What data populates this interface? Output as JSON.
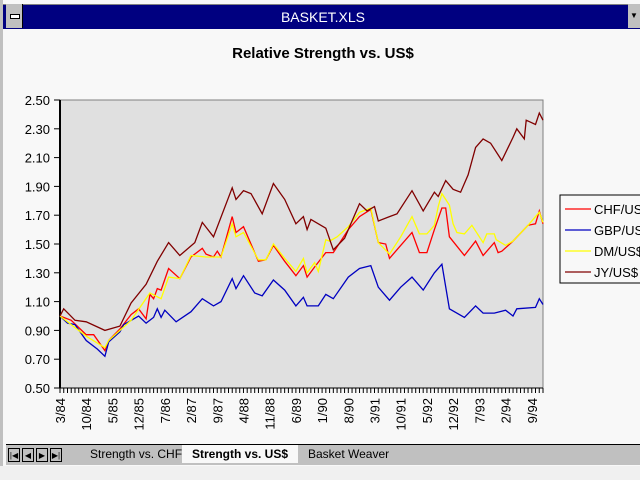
{
  "window": {
    "title": "BASKET.XLS"
  },
  "tabs": [
    {
      "label": "Strength vs. CHF",
      "active": false
    },
    {
      "label": "Strength vs. US$",
      "active": true
    },
    {
      "label": "Basket Weaver",
      "active": false
    }
  ],
  "nav_buttons": [
    "first-sheet",
    "prev-sheet",
    "next-sheet",
    "last-sheet"
  ],
  "chart_data": {
    "type": "line",
    "title": "Relative Strength vs. US$",
    "xlabel": "",
    "ylabel": "",
    "x_unit": "months since 3/84",
    "xlim": [
      0,
      129
    ],
    "ylim": [
      0.5,
      2.5
    ],
    "yticks": [
      "0.50",
      "0.70",
      "0.90",
      "1.10",
      "1.30",
      "1.50",
      "1.70",
      "1.90",
      "2.10",
      "2.30",
      "2.50"
    ],
    "xtick_labels": [
      "3/84",
      "10/84",
      "5/85",
      "12/85",
      "7/86",
      "2/87",
      "9/87",
      "4/88",
      "11/88",
      "6/89",
      "1/90",
      "8/90",
      "3/91",
      "10/91",
      "5/92",
      "12/92",
      "7/93",
      "2/94",
      "9/94"
    ],
    "xtick_step_months": 7,
    "grid": false,
    "legend": "right",
    "series": [
      {
        "name": "CHF/US",
        "color": "#ff0000",
        "points": [
          [
            0,
            1.0
          ],
          [
            3,
            0.97
          ],
          [
            7,
            0.87
          ],
          [
            9,
            0.87
          ],
          [
            12,
            0.76
          ],
          [
            13,
            0.83
          ],
          [
            16,
            0.91
          ],
          [
            19,
            1.01
          ],
          [
            21,
            1.05
          ],
          [
            23,
            0.98
          ],
          [
            24,
            1.15
          ],
          [
            25,
            1.12
          ],
          [
            26,
            1.19
          ],
          [
            27,
            1.18
          ],
          [
            29,
            1.33
          ],
          [
            32,
            1.26
          ],
          [
            35,
            1.41
          ],
          [
            38,
            1.47
          ],
          [
            39,
            1.43
          ],
          [
            41,
            1.41
          ],
          [
            42,
            1.45
          ],
          [
            43,
            1.41
          ],
          [
            46,
            1.69
          ],
          [
            47,
            1.58
          ],
          [
            49,
            1.62
          ],
          [
            53,
            1.38
          ],
          [
            55,
            1.39
          ],
          [
            57,
            1.49
          ],
          [
            60,
            1.38
          ],
          [
            63,
            1.28
          ],
          [
            65,
            1.35
          ],
          [
            66,
            1.27
          ],
          [
            68,
            1.34
          ],
          [
            71,
            1.44
          ],
          [
            73,
            1.44
          ],
          [
            77,
            1.6
          ],
          [
            80,
            1.69
          ],
          [
            83,
            1.74
          ],
          [
            85,
            1.51
          ],
          [
            87,
            1.5
          ],
          [
            88,
            1.4
          ],
          [
            91,
            1.49
          ],
          [
            94,
            1.58
          ],
          [
            96,
            1.44
          ],
          [
            98,
            1.44
          ],
          [
            100,
            1.6
          ],
          [
            102,
            1.75
          ],
          [
            103,
            1.75
          ],
          [
            104,
            1.55
          ],
          [
            108,
            1.42
          ],
          [
            111,
            1.52
          ],
          [
            113,
            1.42
          ],
          [
            116,
            1.51
          ],
          [
            117,
            1.44
          ],
          [
            118,
            1.45
          ],
          [
            121,
            1.52
          ],
          [
            125,
            1.63
          ],
          [
            127,
            1.64
          ],
          [
            128,
            1.73
          ],
          [
            129,
            1.64
          ]
        ]
      },
      {
        "name": "GBP/US",
        "color": "#0000c0",
        "points": [
          [
            0,
            1.0
          ],
          [
            2,
            0.95
          ],
          [
            4,
            0.94
          ],
          [
            7,
            0.83
          ],
          [
            10,
            0.77
          ],
          [
            12,
            0.72
          ],
          [
            13,
            0.82
          ],
          [
            16,
            0.89
          ],
          [
            17,
            0.94
          ],
          [
            21,
            1.0
          ],
          [
            23,
            0.95
          ],
          [
            25,
            0.99
          ],
          [
            26,
            1.05
          ],
          [
            27,
            0.99
          ],
          [
            28,
            1.04
          ],
          [
            31,
            0.96
          ],
          [
            35,
            1.03
          ],
          [
            38,
            1.12
          ],
          [
            41,
            1.07
          ],
          [
            43,
            1.1
          ],
          [
            46,
            1.26
          ],
          [
            47,
            1.19
          ],
          [
            49,
            1.28
          ],
          [
            52,
            1.16
          ],
          [
            54,
            1.14
          ],
          [
            57,
            1.25
          ],
          [
            60,
            1.18
          ],
          [
            63,
            1.07
          ],
          [
            65,
            1.13
          ],
          [
            66,
            1.07
          ],
          [
            69,
            1.07
          ],
          [
            71,
            1.15
          ],
          [
            73,
            1.12
          ],
          [
            77,
            1.27
          ],
          [
            80,
            1.33
          ],
          [
            83,
            1.35
          ],
          [
            85,
            1.2
          ],
          [
            88,
            1.11
          ],
          [
            91,
            1.2
          ],
          [
            94,
            1.27
          ],
          [
            97,
            1.18
          ],
          [
            100,
            1.3
          ],
          [
            102,
            1.36
          ],
          [
            104,
            1.05
          ],
          [
            108,
            0.99
          ],
          [
            111,
            1.07
          ],
          [
            113,
            1.02
          ],
          [
            116,
            1.02
          ],
          [
            119,
            1.04
          ],
          [
            121,
            1.0
          ],
          [
            122,
            1.05
          ],
          [
            127,
            1.06
          ],
          [
            128,
            1.12
          ],
          [
            129,
            1.08
          ]
        ]
      },
      {
        "name": "DM/US$",
        "color": "#ffff00",
        "points": [
          [
            0,
            1.0
          ],
          [
            7,
            0.86
          ],
          [
            12,
            0.78
          ],
          [
            13,
            0.83
          ],
          [
            19,
            0.97
          ],
          [
            24,
            1.16
          ],
          [
            27,
            1.12
          ],
          [
            29,
            1.27
          ],
          [
            32,
            1.26
          ],
          [
            35,
            1.42
          ],
          [
            39,
            1.41
          ],
          [
            43,
            1.41
          ],
          [
            46,
            1.64
          ],
          [
            47,
            1.55
          ],
          [
            49,
            1.58
          ],
          [
            53,
            1.39
          ],
          [
            55,
            1.39
          ],
          [
            57,
            1.5
          ],
          [
            60,
            1.4
          ],
          [
            63,
            1.31
          ],
          [
            65,
            1.4
          ],
          [
            66,
            1.3
          ],
          [
            68,
            1.37
          ],
          [
            69,
            1.31
          ],
          [
            71,
            1.53
          ],
          [
            72,
            1.52
          ],
          [
            74,
            1.55
          ],
          [
            77,
            1.62
          ],
          [
            80,
            1.72
          ],
          [
            83,
            1.75
          ],
          [
            85,
            1.51
          ],
          [
            88,
            1.43
          ],
          [
            91,
            1.55
          ],
          [
            94,
            1.69
          ],
          [
            96,
            1.57
          ],
          [
            98,
            1.57
          ],
          [
            100,
            1.63
          ],
          [
            101,
            1.76
          ],
          [
            102,
            1.85
          ],
          [
            104,
            1.77
          ],
          [
            105,
            1.64
          ],
          [
            106,
            1.58
          ],
          [
            108,
            1.57
          ],
          [
            110,
            1.63
          ],
          [
            113,
            1.51
          ],
          [
            114,
            1.57
          ],
          [
            116,
            1.57
          ],
          [
            116.5,
            1.53
          ],
          [
            119,
            1.49
          ],
          [
            121,
            1.52
          ],
          [
            125,
            1.63
          ],
          [
            128,
            1.72
          ],
          [
            129,
            1.65
          ]
        ]
      },
      {
        "name": "JY/US$",
        "color": "#800000",
        "points": [
          [
            0,
            1.0
          ],
          [
            1,
            1.05
          ],
          [
            4,
            0.97
          ],
          [
            7,
            0.96
          ],
          [
            12,
            0.9
          ],
          [
            16,
            0.93
          ],
          [
            19,
            1.09
          ],
          [
            23,
            1.22
          ],
          [
            26,
            1.38
          ],
          [
            29,
            1.51
          ],
          [
            32,
            1.42
          ],
          [
            36,
            1.51
          ],
          [
            38,
            1.65
          ],
          [
            41,
            1.55
          ],
          [
            46,
            1.89
          ],
          [
            47,
            1.81
          ],
          [
            49,
            1.87
          ],
          [
            51,
            1.85
          ],
          [
            54,
            1.71
          ],
          [
            57,
            1.92
          ],
          [
            60,
            1.81
          ],
          [
            63,
            1.64
          ],
          [
            65,
            1.69
          ],
          [
            66,
            1.6
          ],
          [
            67,
            1.67
          ],
          [
            71,
            1.61
          ],
          [
            73,
            1.46
          ],
          [
            76,
            1.54
          ],
          [
            80,
            1.78
          ],
          [
            82,
            1.73
          ],
          [
            84,
            1.76
          ],
          [
            85,
            1.66
          ],
          [
            88,
            1.69
          ],
          [
            90,
            1.71
          ],
          [
            94,
            1.87
          ],
          [
            97,
            1.73
          ],
          [
            100,
            1.86
          ],
          [
            101,
            1.83
          ],
          [
            103,
            1.94
          ],
          [
            105,
            1.88
          ],
          [
            107,
            1.86
          ],
          [
            109,
            1.98
          ],
          [
            111,
            2.17
          ],
          [
            113,
            2.23
          ],
          [
            115,
            2.2
          ],
          [
            118,
            2.08
          ],
          [
            121,
            2.24
          ],
          [
            122,
            2.3
          ],
          [
            124,
            2.23
          ],
          [
            124.5,
            2.36
          ],
          [
            127,
            2.33
          ],
          [
            128,
            2.41
          ],
          [
            129,
            2.36
          ]
        ]
      }
    ]
  }
}
